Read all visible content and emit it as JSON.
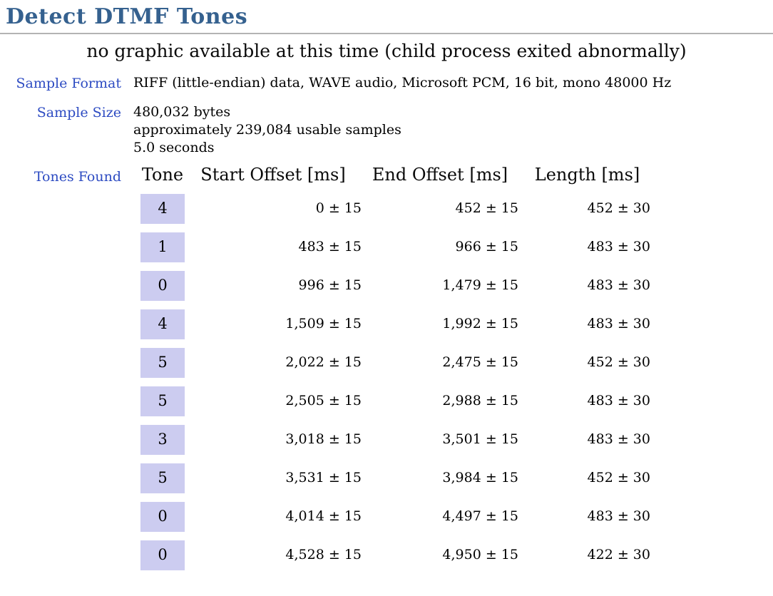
{
  "page": {
    "title": "Detect DTMF Tones",
    "notice": "no graphic available at this time (child process exited abnormally)"
  },
  "sample_format": {
    "label": "Sample Format",
    "value": "RIFF (little-endian) data, WAVE audio, Microsoft PCM, 16 bit, mono 48000 Hz"
  },
  "sample_size": {
    "label": "Sample Size",
    "line1": "480,032 bytes",
    "line2": "approximately 239,084 usable samples",
    "line3": "5.0 seconds"
  },
  "tones_found": {
    "label": "Tones Found",
    "header": {
      "tone": "Tone",
      "start": "Start Offset [ms]",
      "end": "End Offset [ms]",
      "length": "Length [ms]"
    },
    "rows": [
      {
        "tone": "4",
        "start": "0 ± 15",
        "end": "452 ± 15",
        "length": "452 ± 30"
      },
      {
        "tone": "1",
        "start": "483 ± 15",
        "end": "966 ± 15",
        "length": "483 ± 30"
      },
      {
        "tone": "0",
        "start": "996 ± 15",
        "end": "1,479 ± 15",
        "length": "483 ± 30"
      },
      {
        "tone": "4",
        "start": "1,509 ± 15",
        "end": "1,992 ± 15",
        "length": "483 ± 30"
      },
      {
        "tone": "5",
        "start": "2,022 ± 15",
        "end": "2,475 ± 15",
        "length": "452 ± 30"
      },
      {
        "tone": "5",
        "start": "2,505 ± 15",
        "end": "2,988 ± 15",
        "length": "483 ± 30"
      },
      {
        "tone": "3",
        "start": "3,018 ± 15",
        "end": "3,501 ± 15",
        "length": "483 ± 30"
      },
      {
        "tone": "5",
        "start": "3,531 ± 15",
        "end": "3,984 ± 15",
        "length": "452 ± 30"
      },
      {
        "tone": "0",
        "start": "4,014 ± 15",
        "end": "4,497 ± 15",
        "length": "483 ± 30"
      },
      {
        "tone": "0",
        "start": "4,528 ± 15",
        "end": "4,950 ± 15",
        "length": "422 ± 30"
      }
    ]
  },
  "colors": {
    "title_blue": "#35618f",
    "label_blue": "#2d4bc2",
    "tone_cell_bg": "#ccccf0",
    "rule_gray": "#b3b3b3"
  }
}
